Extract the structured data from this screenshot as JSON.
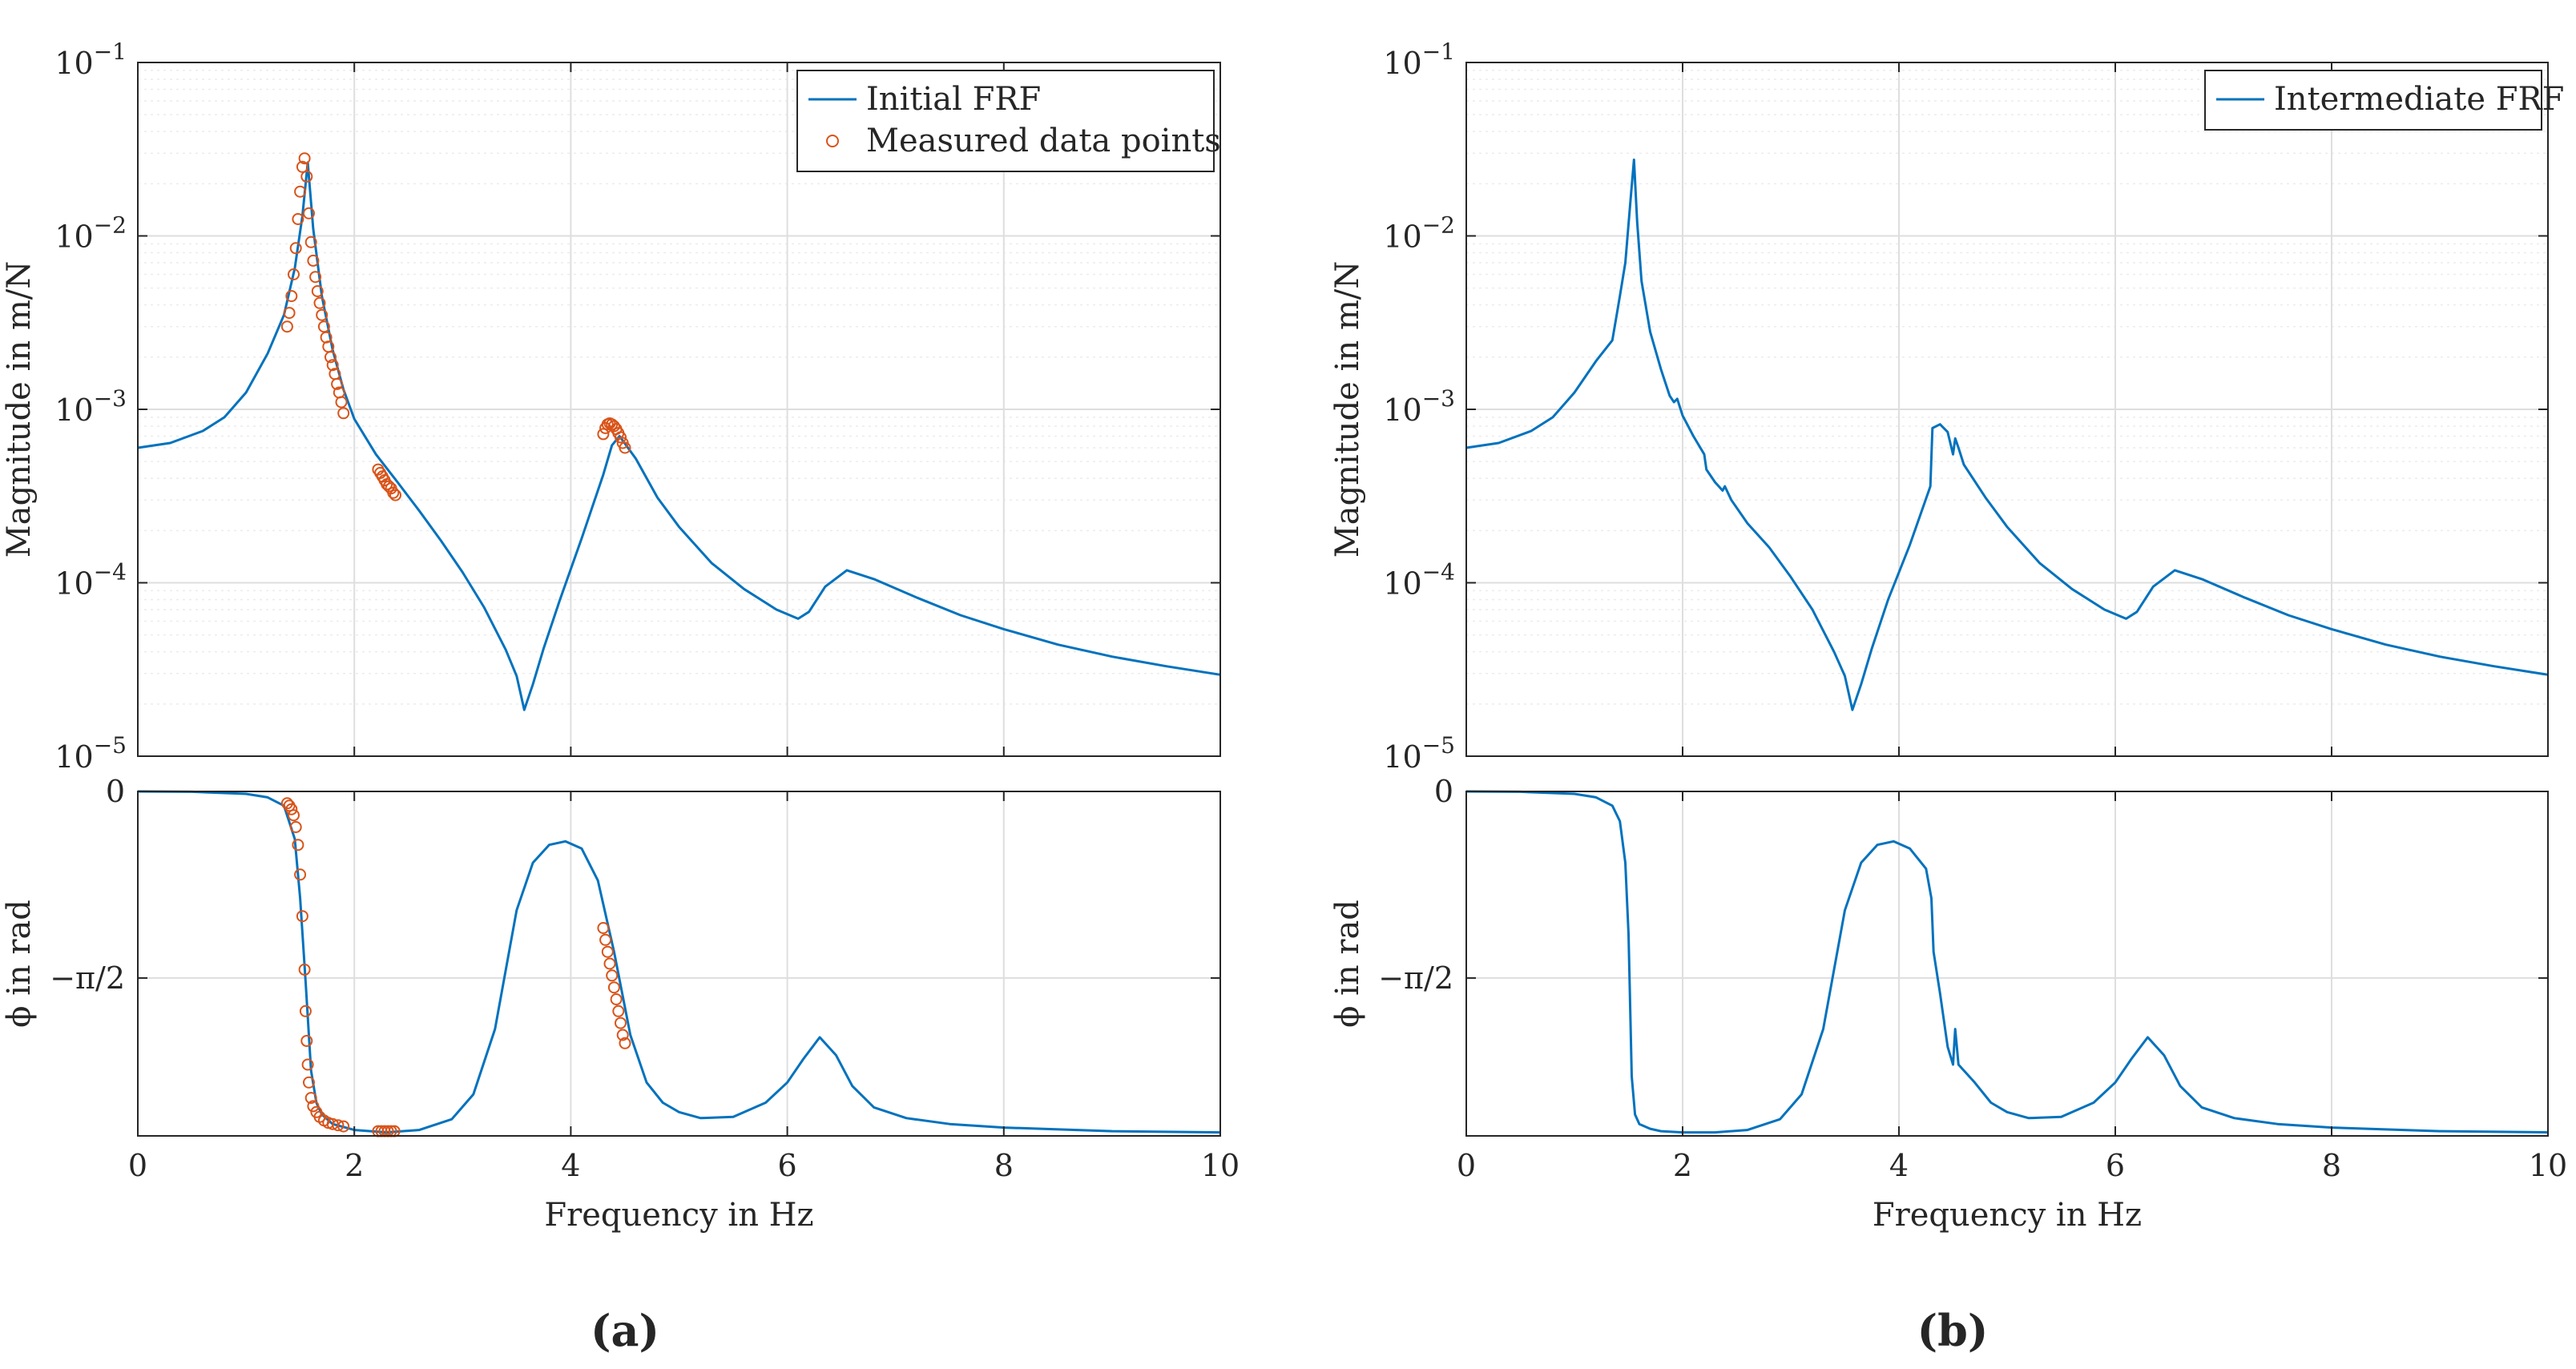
{
  "figure": {
    "panel_a_label": "(a)",
    "panel_b_label": "(b)"
  },
  "chart_data": [
    {
      "id": "a-mag",
      "type": "line",
      "scale": "log",
      "xlabel": "Frequency in Hz",
      "ylabel": "Magnitude in m/N",
      "xlim": [
        0,
        10
      ],
      "ylim": [
        1e-05,
        0.1
      ],
      "xticks": [
        0,
        2,
        4,
        6,
        8,
        10
      ],
      "yticks": [
        {
          "mantissa": "10",
          "exp": "−5",
          "value": 1e-05
        },
        {
          "mantissa": "10",
          "exp": "−4",
          "value": 0.0001
        },
        {
          "mantissa": "10",
          "exp": "−3",
          "value": 0.001
        },
        {
          "mantissa": "10",
          "exp": "−2",
          "value": 0.01
        },
        {
          "mantissa": "10",
          "exp": "−1",
          "value": 0.1
        }
      ],
      "legend": [
        "Initial FRF",
        "Measured data points"
      ],
      "legend_position": "top-right",
      "series": [
        {
          "name": "Initial FRF",
          "kind": "line",
          "color": "#0072BD",
          "x": [
            0,
            0.3,
            0.6,
            0.8,
            1.0,
            1.2,
            1.35,
            1.45,
            1.52,
            1.57,
            1.62,
            1.7,
            1.8,
            1.9,
            2.0,
            2.2,
            2.4,
            2.6,
            2.8,
            3.0,
            3.2,
            3.4,
            3.5,
            3.57,
            3.65,
            3.75,
            3.9,
            4.1,
            4.3,
            4.38,
            4.45,
            4.6,
            4.8,
            5.0,
            5.3,
            5.6,
            5.9,
            6.1,
            6.2,
            6.35,
            6.55,
            6.8,
            7.2,
            7.6,
            8.0,
            8.5,
            9.0,
            9.5,
            10.0
          ],
          "y": [
            0.0006,
            0.00064,
            0.00075,
            0.0009,
            0.00125,
            0.0021,
            0.0035,
            0.0065,
            0.013,
            0.0265,
            0.011,
            0.0045,
            0.0022,
            0.0013,
            0.00088,
            0.00055,
            0.00038,
            0.00026,
            0.000175,
            0.000115,
            7.2e-05,
            4.1e-05,
            2.9e-05,
            1.85e-05,
            2.6e-05,
            4.2e-05,
            8e-05,
            0.00018,
            0.00042,
            0.00062,
            0.0007,
            0.00052,
            0.00031,
            0.00021,
            0.00013,
            9.2e-05,
            7e-05,
            6.2e-05,
            6.8e-05,
            9.5e-05,
            0.000118,
            0.000105,
            8.2e-05,
            6.5e-05,
            5.4e-05,
            4.4e-05,
            3.75e-05,
            3.3e-05,
            2.95e-05
          ]
        },
        {
          "name": "Measured data points",
          "kind": "scatter",
          "color": "#D95319",
          "x": [
            1.38,
            1.4,
            1.42,
            1.44,
            1.46,
            1.48,
            1.5,
            1.52,
            1.54,
            1.56,
            1.58,
            1.6,
            1.62,
            1.64,
            1.66,
            1.68,
            1.7,
            1.72,
            1.74,
            1.76,
            1.78,
            1.8,
            1.82,
            1.84,
            1.86,
            1.88,
            1.9,
            2.22,
            2.24,
            2.26,
            2.28,
            2.3,
            2.32,
            2.34,
            2.36,
            2.38,
            4.3,
            4.32,
            4.34,
            4.36,
            4.38,
            4.4,
            4.42,
            4.44,
            4.46,
            4.48,
            4.5
          ],
          "y": [
            0.003,
            0.0036,
            0.0045,
            0.006,
            0.0085,
            0.0125,
            0.018,
            0.025,
            0.028,
            0.022,
            0.0135,
            0.0092,
            0.0072,
            0.0058,
            0.0048,
            0.0041,
            0.0035,
            0.003,
            0.0026,
            0.0023,
            0.002,
            0.0018,
            0.0016,
            0.0014,
            0.00125,
            0.0011,
            0.00095,
            0.00045,
            0.00043,
            0.00041,
            0.00039,
            0.00037,
            0.00036,
            0.00035,
            0.00033,
            0.00032,
            0.00072,
            0.00078,
            0.00082,
            0.00083,
            0.00082,
            0.0008,
            0.00077,
            0.00073,
            0.00069,
            0.00064,
            0.0006
          ]
        }
      ]
    },
    {
      "id": "a-phase",
      "type": "line",
      "scale": "linear",
      "xlabel": "Frequency in Hz",
      "ylabel": "ϕ in rad",
      "xlim": [
        0,
        10
      ],
      "ylim": [
        -2.9,
        0
      ],
      "xticks": [
        0,
        2,
        4,
        6,
        8,
        10
      ],
      "yticks": [
        {
          "label": "0",
          "value": 0
        },
        {
          "label": "−π/2",
          "value": -1.5708
        }
      ],
      "series": [
        {
          "name": "Initial FRF",
          "kind": "line",
          "color": "#0072BD",
          "x": [
            0,
            0.5,
            1.0,
            1.2,
            1.35,
            1.45,
            1.5,
            1.55,
            1.6,
            1.65,
            1.7,
            1.8,
            2.0,
            2.3,
            2.6,
            2.9,
            3.1,
            3.3,
            3.5,
            3.65,
            3.8,
            3.95,
            4.1,
            4.25,
            4.4,
            4.55,
            4.7,
            4.85,
            5.0,
            5.2,
            5.5,
            5.8,
            6.0,
            6.15,
            6.3,
            6.45,
            6.6,
            6.8,
            7.1,
            7.5,
            8.0,
            9.0,
            10.0
          ],
          "y": [
            0,
            -0.003,
            -0.02,
            -0.05,
            -0.12,
            -0.4,
            -0.9,
            -1.6,
            -2.35,
            -2.62,
            -2.72,
            -2.8,
            -2.85,
            -2.87,
            -2.85,
            -2.76,
            -2.55,
            -2.0,
            -1.0,
            -0.6,
            -0.45,
            -0.42,
            -0.48,
            -0.75,
            -1.35,
            -2.05,
            -2.45,
            -2.62,
            -2.7,
            -2.75,
            -2.74,
            -2.62,
            -2.45,
            -2.25,
            -2.07,
            -2.22,
            -2.48,
            -2.66,
            -2.75,
            -2.8,
            -2.83,
            -2.86,
            -2.87
          ]
        },
        {
          "name": "Measured data points",
          "kind": "scatter",
          "color": "#D95319",
          "x": [
            1.38,
            1.4,
            1.42,
            1.44,
            1.46,
            1.48,
            1.5,
            1.52,
            1.54,
            1.55,
            1.56,
            1.57,
            1.58,
            1.6,
            1.62,
            1.65,
            1.68,
            1.72,
            1.76,
            1.8,
            1.85,
            1.9,
            2.22,
            2.25,
            2.28,
            2.31,
            2.34,
            2.37,
            4.3,
            4.32,
            4.34,
            4.36,
            4.38,
            4.4,
            4.42,
            4.44,
            4.46,
            4.48,
            4.5
          ],
          "y": [
            -0.1,
            -0.12,
            -0.15,
            -0.2,
            -0.3,
            -0.45,
            -0.7,
            -1.05,
            -1.5,
            -1.85,
            -2.1,
            -2.3,
            -2.45,
            -2.58,
            -2.65,
            -2.7,
            -2.74,
            -2.77,
            -2.79,
            -2.8,
            -2.81,
            -2.82,
            -2.86,
            -2.86,
            -2.86,
            -2.86,
            -2.86,
            -2.86,
            -1.15,
            -1.25,
            -1.35,
            -1.45,
            -1.55,
            -1.65,
            -1.75,
            -1.85,
            -1.95,
            -2.05,
            -2.12
          ]
        }
      ]
    },
    {
      "id": "b-mag",
      "type": "line",
      "scale": "log",
      "xlabel": "Frequency in Hz",
      "ylabel": "Magnitude in m/N",
      "xlim": [
        0,
        10
      ],
      "ylim": [
        1e-05,
        0.1
      ],
      "xticks": [
        0,
        2,
        4,
        6,
        8,
        10
      ],
      "yticks": [
        {
          "mantissa": "10",
          "exp": "−5",
          "value": 1e-05
        },
        {
          "mantissa": "10",
          "exp": "−4",
          "value": 0.0001
        },
        {
          "mantissa": "10",
          "exp": "−3",
          "value": 0.001
        },
        {
          "mantissa": "10",
          "exp": "−2",
          "value": 0.01
        },
        {
          "mantissa": "10",
          "exp": "−1",
          "value": 0.1
        }
      ],
      "legend": [
        "Intermediate FRF"
      ],
      "legend_position": "top-right",
      "series": [
        {
          "name": "Intermediate FRF",
          "kind": "line",
          "color": "#0072BD",
          "x": [
            0,
            0.3,
            0.6,
            0.8,
            1.0,
            1.2,
            1.35,
            1.39,
            1.42,
            1.47,
            1.52,
            1.55,
            1.58,
            1.62,
            1.7,
            1.8,
            1.88,
            1.92,
            1.95,
            2.0,
            2.1,
            2.2,
            2.22,
            2.3,
            2.37,
            2.39,
            2.45,
            2.6,
            2.8,
            3.0,
            3.2,
            3.4,
            3.5,
            3.57,
            3.65,
            3.75,
            3.9,
            4.1,
            4.29,
            4.31,
            4.38,
            4.45,
            4.5,
            4.52,
            4.55,
            4.6,
            4.8,
            5.0,
            5.3,
            5.6,
            5.9,
            6.1,
            6.2,
            6.35,
            6.55,
            6.8,
            7.2,
            7.6,
            8.0,
            8.5,
            9.0,
            9.5,
            10.0
          ],
          "y": [
            0.0006,
            0.00064,
            0.00075,
            0.0009,
            0.00125,
            0.0019,
            0.0025,
            0.0035,
            0.0045,
            0.007,
            0.0165,
            0.0275,
            0.012,
            0.0055,
            0.0028,
            0.0017,
            0.0012,
            0.0011,
            0.00115,
            0.00092,
            0.0007,
            0.00055,
            0.00045,
            0.00038,
            0.00034,
            0.00036,
            0.0003,
            0.00022,
            0.00016,
            0.000108,
            7e-05,
            4e-05,
            2.9e-05,
            1.85e-05,
            2.6e-05,
            4.2e-05,
            8e-05,
            0.000165,
            0.00036,
            0.00078,
            0.00082,
            0.00074,
            0.00055,
            0.00068,
            0.0006,
            0.00048,
            0.00031,
            0.00021,
            0.00013,
            9.2e-05,
            7e-05,
            6.2e-05,
            6.8e-05,
            9.5e-05,
            0.000118,
            0.000105,
            8.2e-05,
            6.5e-05,
            5.4e-05,
            4.4e-05,
            3.75e-05,
            3.3e-05,
            2.95e-05
          ]
        }
      ]
    },
    {
      "id": "b-phase",
      "type": "line",
      "scale": "linear",
      "xlabel": "Frequency in Hz",
      "ylabel": "ϕ in rad",
      "xlim": [
        0,
        10
      ],
      "ylim": [
        -2.9,
        0
      ],
      "xticks": [
        0,
        2,
        4,
        6,
        8,
        10
      ],
      "yticks": [
        {
          "label": "0",
          "value": 0
        },
        {
          "label": "−π/2",
          "value": -1.5708
        }
      ],
      "series": [
        {
          "name": "Intermediate FRF",
          "kind": "line",
          "color": "#0072BD",
          "x": [
            0,
            0.5,
            1.0,
            1.2,
            1.35,
            1.42,
            1.47,
            1.5,
            1.53,
            1.56,
            1.6,
            1.7,
            1.8,
            2.0,
            2.3,
            2.6,
            2.9,
            3.1,
            3.3,
            3.5,
            3.65,
            3.8,
            3.95,
            4.1,
            4.25,
            4.3,
            4.32,
            4.38,
            4.45,
            4.5,
            4.52,
            4.55,
            4.7,
            4.85,
            5.0,
            5.2,
            5.5,
            5.8,
            6.0,
            6.15,
            6.3,
            6.45,
            6.6,
            6.8,
            7.1,
            7.5,
            8.0,
            9.0,
            10.0
          ],
          "y": [
            0,
            -0.003,
            -0.02,
            -0.05,
            -0.12,
            -0.25,
            -0.6,
            -1.2,
            -2.4,
            -2.72,
            -2.8,
            -2.84,
            -2.86,
            -2.87,
            -2.87,
            -2.85,
            -2.76,
            -2.55,
            -2.0,
            -1.0,
            -0.6,
            -0.45,
            -0.42,
            -0.48,
            -0.65,
            -0.9,
            -1.35,
            -1.7,
            -2.15,
            -2.3,
            -2.0,
            -2.3,
            -2.45,
            -2.62,
            -2.7,
            -2.75,
            -2.74,
            -2.62,
            -2.45,
            -2.25,
            -2.07,
            -2.22,
            -2.48,
            -2.66,
            -2.75,
            -2.8,
            -2.83,
            -2.86,
            -2.87
          ]
        }
      ]
    }
  ]
}
